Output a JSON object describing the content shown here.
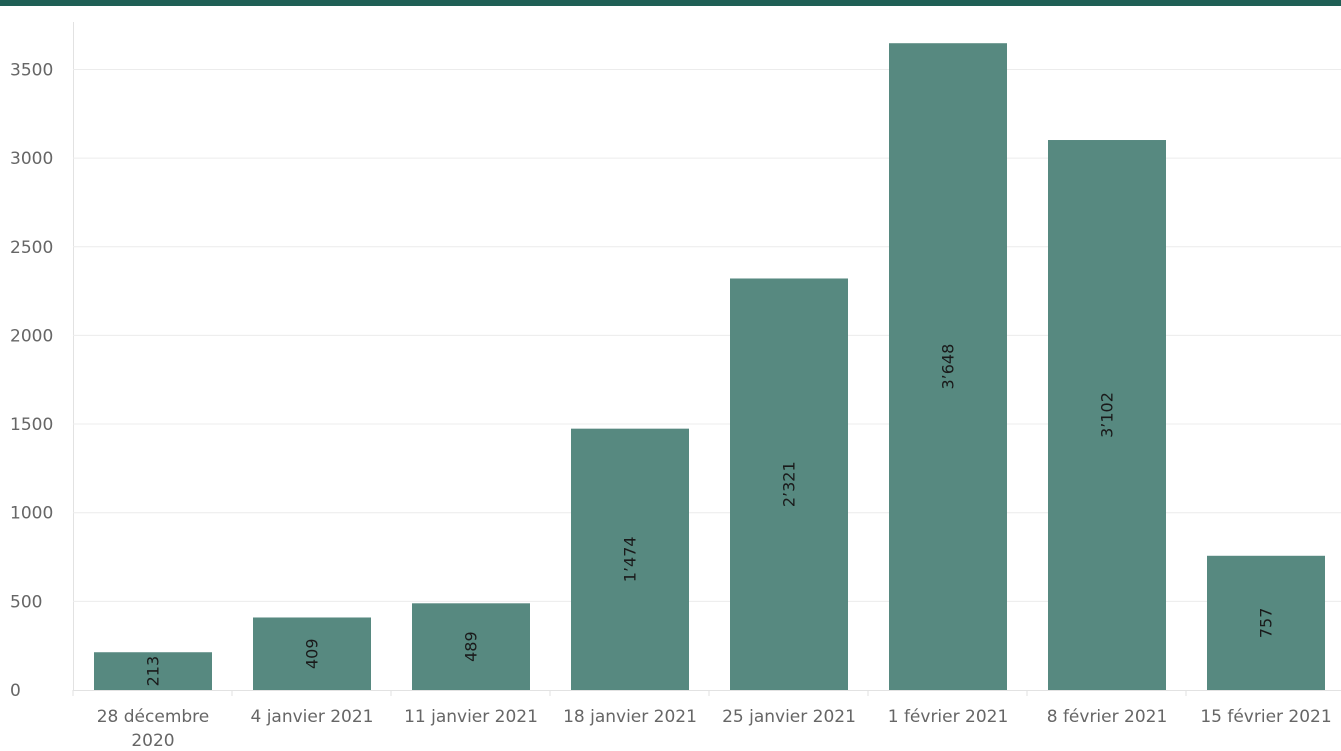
{
  "colors": {
    "bar": "#578980",
    "top_band": "#1f5f55",
    "grid": "#ececec",
    "axis_text": "#666666"
  },
  "chart_data": {
    "type": "bar",
    "title": "",
    "xlabel": "",
    "ylabel": "",
    "categories": [
      [
        "28 décembre",
        "2020"
      ],
      [
        "4 janvier 2021"
      ],
      [
        "11 janvier 2021"
      ],
      [
        "18 janvier 2021"
      ],
      [
        "25 janvier 2021"
      ],
      [
        "1 février 2021"
      ],
      [
        "8 février 2021"
      ],
      [
        "15 février 2021"
      ]
    ],
    "values": [
      213,
      409,
      489,
      1474,
      2321,
      3648,
      3102,
      757
    ],
    "value_labels": [
      "213",
      "409",
      "489",
      "1’474",
      "2’321",
      "3’648",
      "3’102",
      "757"
    ],
    "ylim": [
      0,
      3500
    ],
    "yticks": [
      "0",
      "500",
      "1000",
      "1500",
      "2000",
      "2500",
      "3000",
      "3500"
    ],
    "grid": true,
    "legend": "none"
  }
}
